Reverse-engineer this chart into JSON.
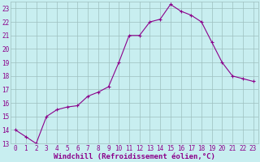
{
  "x": [
    0,
    1,
    2,
    3,
    4,
    5,
    6,
    7,
    8,
    9,
    10,
    11,
    12,
    13,
    14,
    15,
    16,
    17,
    18,
    19,
    20,
    21,
    22,
    23
  ],
  "y": [
    14.0,
    13.5,
    13.0,
    15.0,
    15.5,
    15.7,
    15.8,
    16.5,
    16.8,
    17.2,
    19.0,
    21.0,
    21.0,
    22.0,
    22.2,
    23.3,
    22.8,
    22.5,
    22.0,
    20.5,
    19.0,
    18.0,
    17.8,
    17.6
  ],
  "line_color": "#8B008B",
  "marker": "+",
  "marker_color": "#8B008B",
  "bg_color": "#c8eef0",
  "grid_color": "#9dbfbf",
  "xlabel": "Windchill (Refroidissement éolien,°C)",
  "xlim_min": -0.5,
  "xlim_max": 23.5,
  "ylim_min": 13,
  "ylim_max": 23.5,
  "yticks": [
    13,
    14,
    15,
    16,
    17,
    18,
    19,
    20,
    21,
    22,
    23
  ],
  "xticks": [
    0,
    1,
    2,
    3,
    4,
    5,
    6,
    7,
    8,
    9,
    10,
    11,
    12,
    13,
    14,
    15,
    16,
    17,
    18,
    19,
    20,
    21,
    22,
    23
  ],
  "xlabel_fontsize": 6.5,
  "tick_fontsize": 5.5,
  "axis_label_color": "#8B008B",
  "linewidth": 0.8,
  "markersize": 3
}
